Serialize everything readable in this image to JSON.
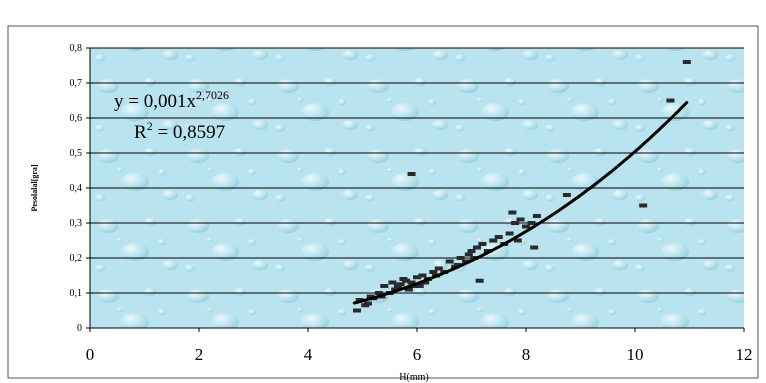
{
  "chart_data": {
    "type": "scatter",
    "title": "",
    "xlabel": "H(mm)",
    "ylabel": "Pesolalal[gra]",
    "xlim": [
      0,
      12
    ],
    "ylim": [
      0,
      0.8
    ],
    "x_ticks": [
      "0",
      "2",
      "4",
      "6",
      "8",
      "10",
      "12"
    ],
    "y_ticks": [
      "0",
      "0,1",
      "0,2",
      "0,3",
      "0,4",
      "0,5",
      "0,6",
      "0,7",
      "0,8"
    ],
    "x_tick_values": [
      0,
      2,
      4,
      6,
      8,
      10,
      12
    ],
    "y_tick_values": [
      0,
      0.1,
      0.2,
      0.3,
      0.4,
      0.5,
      0.6,
      0.7,
      0.8
    ],
    "grid": "horizontal",
    "plot_background": "#b9e3ee",
    "frame_color": "#000000",
    "marker_color": "#2a2a2a",
    "trendline_color": "#000000",
    "equation_text": {
      "base": "y = 0,001x",
      "exponent": "2,7026",
      "r2_label": "R",
      "r2_exp": "2",
      "r2_value": " = 0,8597"
    },
    "series": [
      {
        "x": [
          4.9,
          4.95,
          5.05,
          5.1,
          5.15,
          5.2,
          5.3,
          5.35,
          5.4,
          5.5,
          5.55,
          5.6,
          5.65,
          5.7,
          5.75,
          5.8,
          5.85,
          5.9,
          5.95,
          6.0,
          6.05,
          6.1,
          6.15,
          6.2,
          6.3,
          6.35,
          6.4,
          6.5,
          6.6,
          6.7,
          6.75,
          6.8,
          6.9,
          6.95,
          7.0,
          7.05,
          7.1,
          7.15,
          7.2,
          7.3,
          7.4,
          7.5,
          7.6,
          7.7,
          7.75,
          7.8,
          7.85,
          7.9,
          8.0,
          8.1,
          8.15,
          8.2,
          8.75,
          5.9,
          10.15,
          10.65,
          10.95
        ],
        "y": [
          0.05,
          0.08,
          0.065,
          0.07,
          0.09,
          0.085,
          0.1,
          0.09,
          0.12,
          0.1,
          0.13,
          0.11,
          0.12,
          0.125,
          0.14,
          0.135,
          0.11,
          0.13,
          0.12,
          0.145,
          0.12,
          0.15,
          0.13,
          0.14,
          0.16,
          0.15,
          0.17,
          0.16,
          0.19,
          0.175,
          0.18,
          0.2,
          0.19,
          0.21,
          0.22,
          0.2,
          0.23,
          0.135,
          0.24,
          0.22,
          0.25,
          0.26,
          0.24,
          0.27,
          0.33,
          0.3,
          0.25,
          0.31,
          0.29,
          0.3,
          0.23,
          0.32,
          0.38,
          0.44,
          0.35,
          0.65,
          0.76
        ]
      }
    ],
    "trendline": {
      "type": "power",
      "coefficient": 0.001,
      "exponent": 2.7026,
      "x_range": [
        4.85,
        10.95
      ]
    }
  }
}
